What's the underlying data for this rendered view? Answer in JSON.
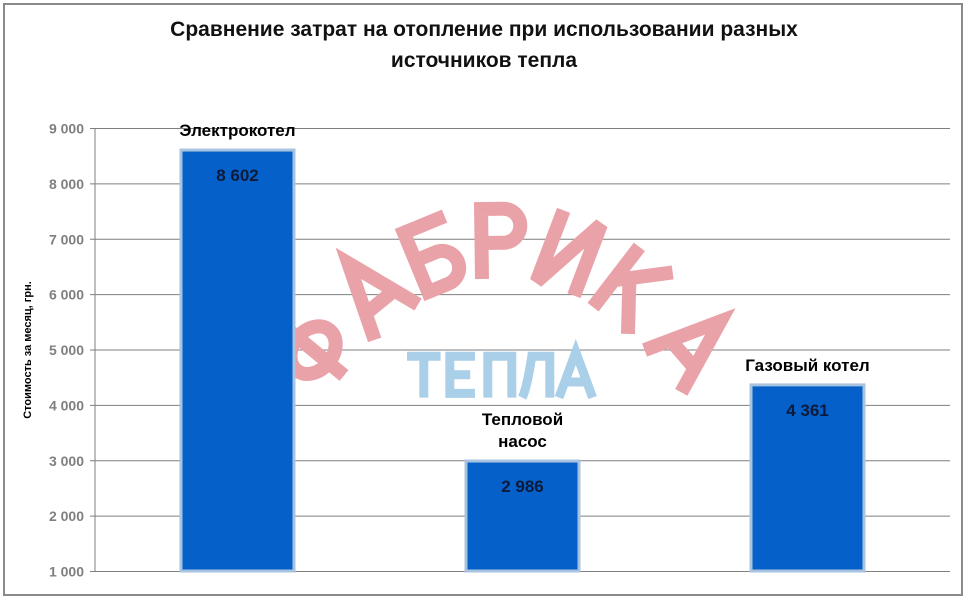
{
  "chart_data": {
    "type": "bar",
    "title_lines": [
      "Сравнение затрат на отопление при использовании разных",
      "источников тепла"
    ],
    "ylabel": "Стоимость за месяц, грн.",
    "xlabel": "",
    "ylim": [
      1000,
      9000
    ],
    "yticks": [
      1000,
      2000,
      3000,
      4000,
      5000,
      6000,
      7000,
      8000,
      9000
    ],
    "ytick_labels": [
      "1 000",
      "2 000",
      "3 000",
      "4 000",
      "5 000",
      "6 000",
      "7 000",
      "8 000",
      "9 000"
    ],
    "grid": true,
    "categories": [
      [
        "Электрокотел"
      ],
      [
        "Тепловой",
        "насос"
      ],
      [
        "Газовый котел"
      ]
    ],
    "values": [
      8602,
      2986,
      4361
    ],
    "value_labels": [
      "8 602",
      "2 986",
      "4 361"
    ],
    "colors": {
      "bar": "#0561c9",
      "bar_border": "#a8c3df",
      "grid": "#7f7f7f",
      "tick_text": "#7f7f7f"
    }
  },
  "watermark": {
    "line1": "ФАБРИКА",
    "line2": "ТЕПЛА",
    "color1": "#e9a3a8",
    "color2": "#a9cfe9"
  }
}
